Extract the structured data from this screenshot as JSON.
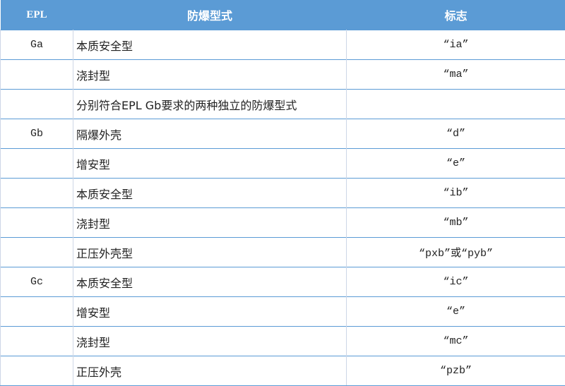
{
  "header": {
    "epl": "EPL",
    "type": "防爆型式",
    "mark": "标志"
  },
  "rows": [
    {
      "epl": "Ga",
      "type": "本质安全型",
      "mark": "“ia”"
    },
    {
      "epl": "",
      "type": "浇封型",
      "mark": "“ma”"
    },
    {
      "epl": "",
      "type": "分别符合EPL Gb要求的两种独立的防爆型式",
      "mark": ""
    },
    {
      "epl": "Gb",
      "type": "隔爆外壳",
      "mark": "“d”"
    },
    {
      "epl": "",
      "type": "增安型",
      "mark": "“e”"
    },
    {
      "epl": "",
      "type": "本质安全型",
      "mark": "“ib”"
    },
    {
      "epl": "",
      "type": "浇封型",
      "mark": "“mb”"
    },
    {
      "epl": "",
      "type": "正压外壳型",
      "mark": "“pxb”或“pyb”"
    },
    {
      "epl": "Gc",
      "type": "本质安全型",
      "mark": "“ic”"
    },
    {
      "epl": "",
      "type": "增安型",
      "mark": "“e”"
    },
    {
      "epl": "",
      "type": "浇封型",
      "mark": "“mc”"
    },
    {
      "epl": "",
      "type": "正压外壳",
      "mark": "“pzb”"
    }
  ],
  "colors": {
    "header_bg": "#5b9bd5",
    "row_border": "#5b9bd5"
  }
}
